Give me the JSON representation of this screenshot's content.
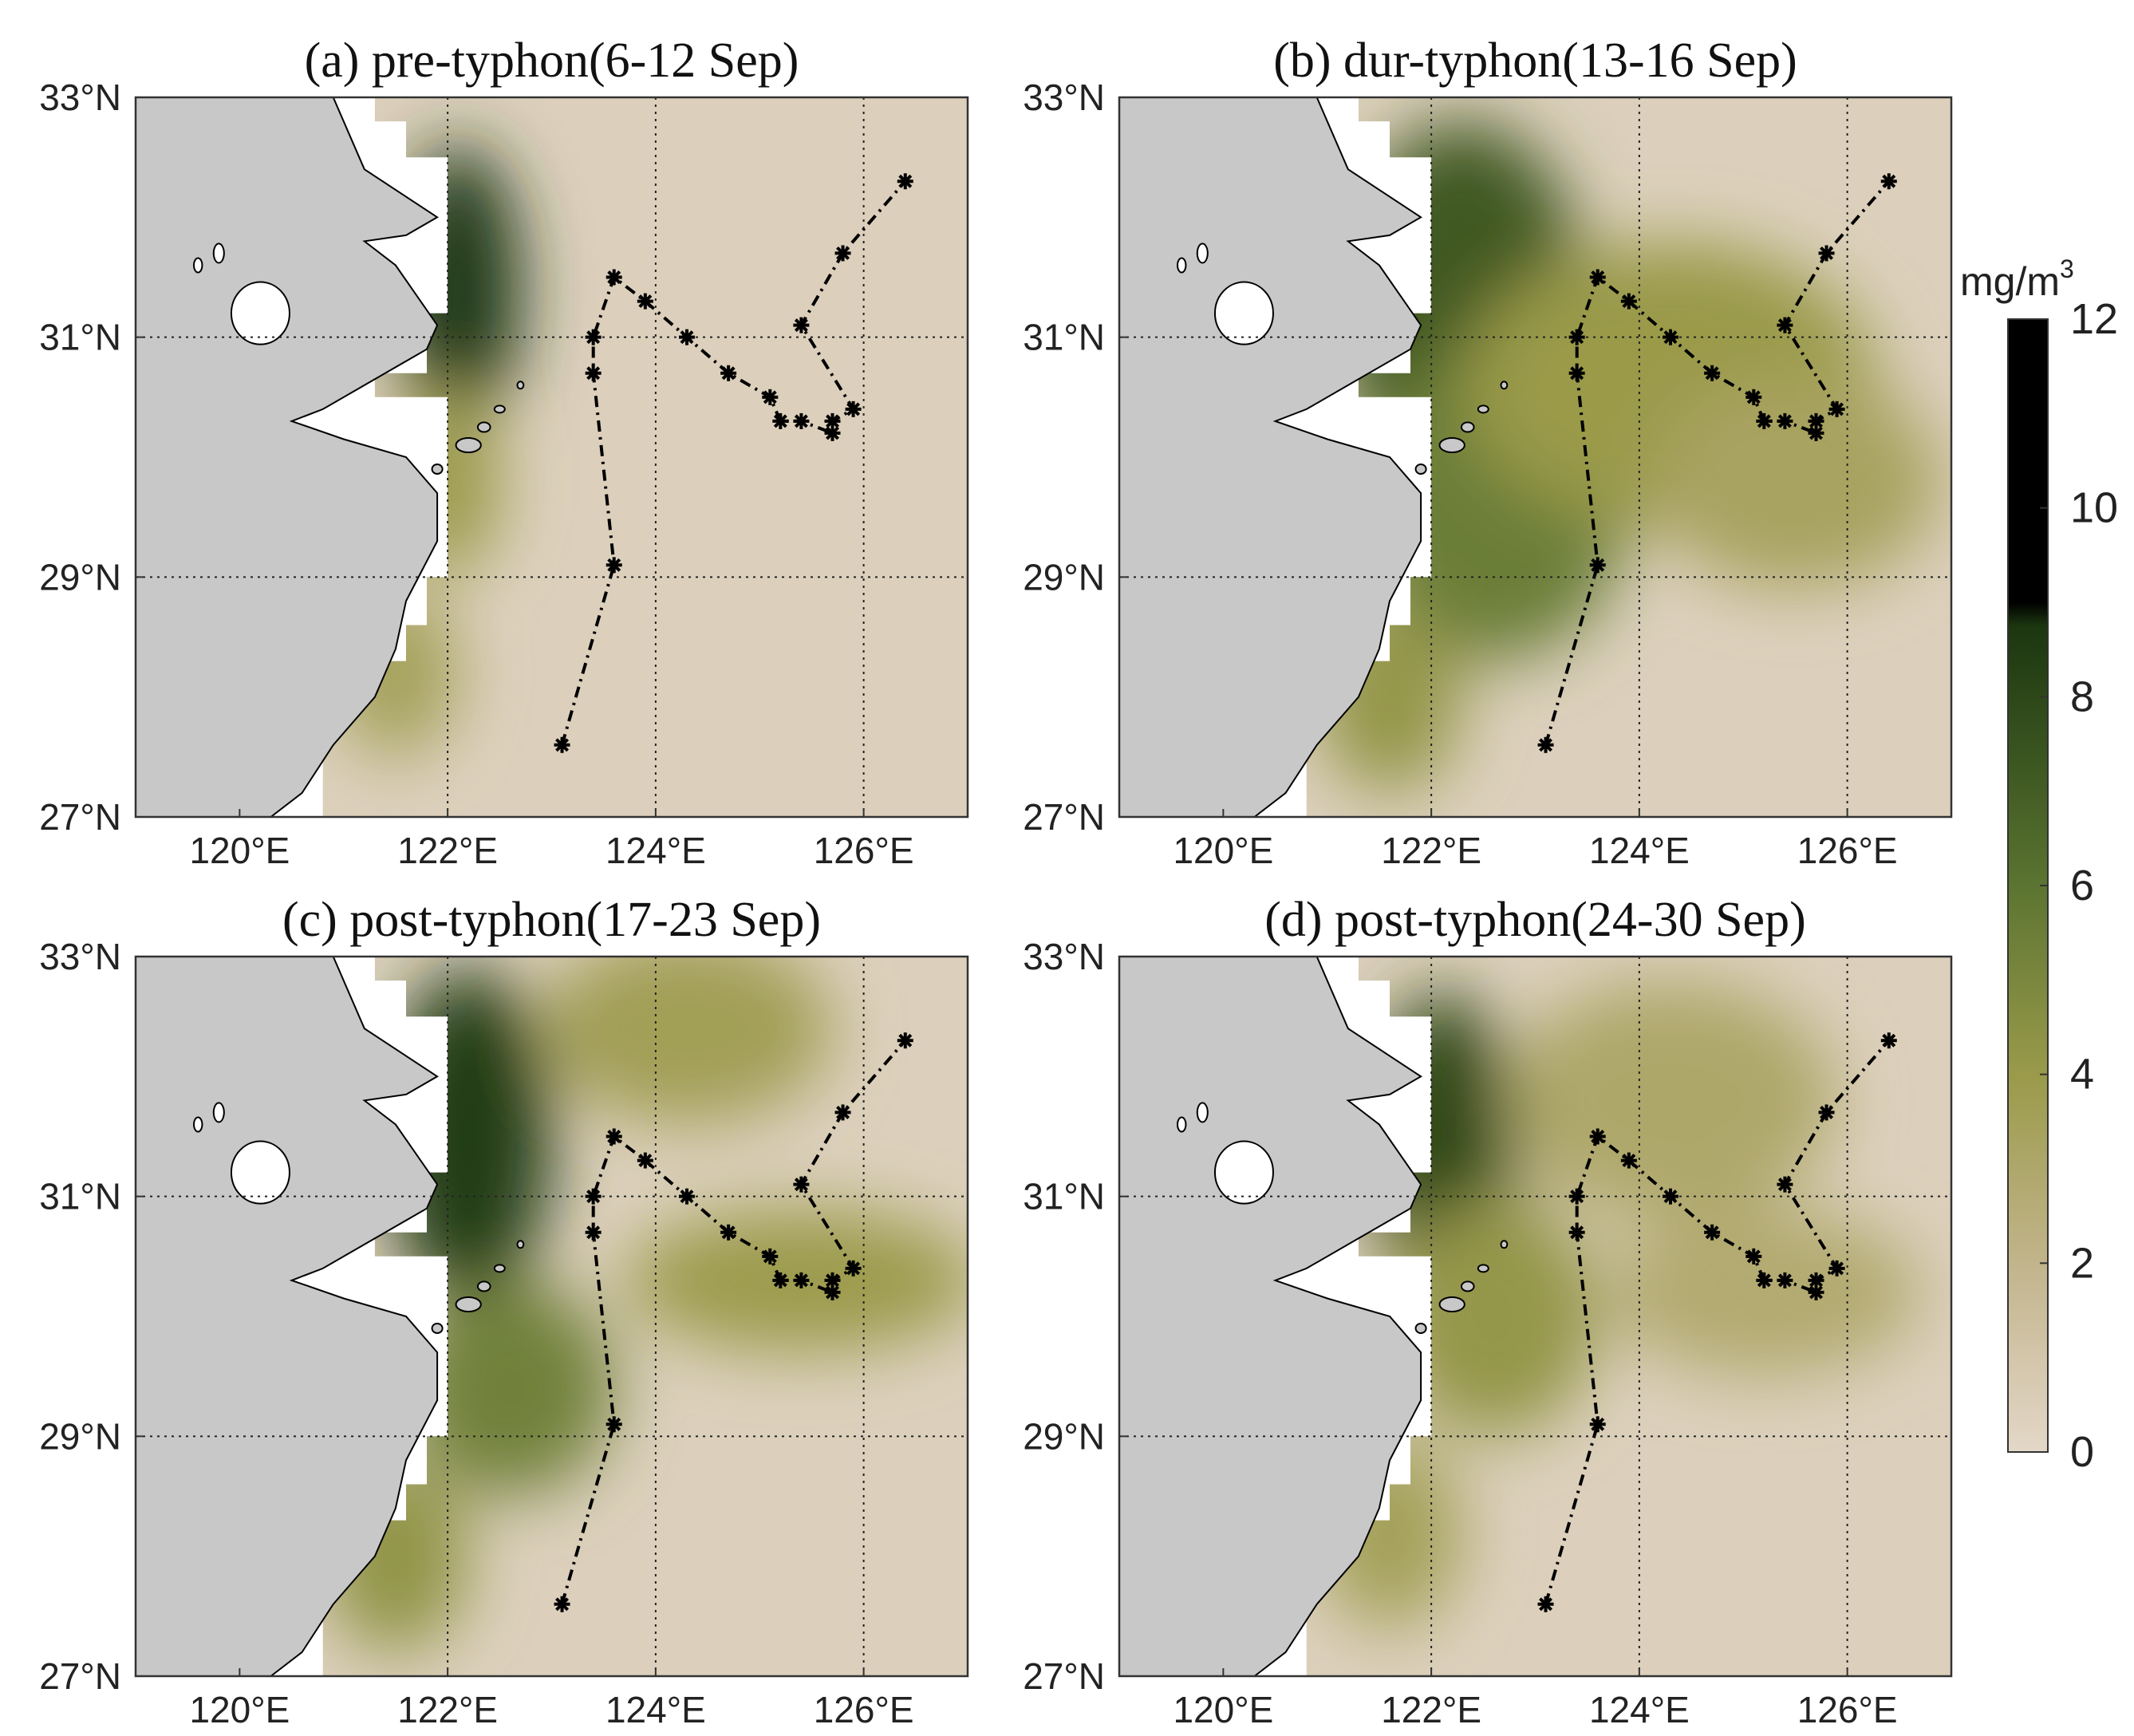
{
  "chart_data": {
    "type": "map",
    "variable_unit_main": "mg/m",
    "variable_unit_exp": "3",
    "colorbar": {
      "ticks": [
        0,
        2,
        4,
        6,
        8,
        10,
        12
      ],
      "tick_labels": [
        "0",
        "2",
        "4",
        "6",
        "8",
        "10",
        "12"
      ],
      "range": [
        0,
        12
      ],
      "saturation_value": 9,
      "colors": {
        "low": "#e3d7c8",
        "mid_low": "#c2b48b",
        "mid": "#9a9a4a",
        "mid_high": "#5b7431",
        "high": "#17310e",
        "saturated": "#000000"
      }
    },
    "lon_range": [
      119,
      127
    ],
    "lat_range": [
      27,
      33
    ],
    "lon_ticks": [
      {
        "value": 120,
        "label": "120°E"
      },
      {
        "value": 122,
        "label": "122°E"
      },
      {
        "value": 124,
        "label": "124°E"
      },
      {
        "value": 126,
        "label": "126°E"
      }
    ],
    "lat_ticks": [
      {
        "value": 27,
        "label": "27°N"
      },
      {
        "value": 29,
        "label": "29°N"
      },
      {
        "value": 31,
        "label": "31°N"
      },
      {
        "value": 33,
        "label": "33°N"
      }
    ],
    "grid_lons": [
      122,
      124,
      126
    ],
    "grid_lats": [
      29,
      31
    ],
    "track_points": [
      {
        "lon": 123.1,
        "lat": 27.6
      },
      {
        "lon": 123.6,
        "lat": 29.1
      },
      {
        "lon": 123.4,
        "lat": 30.7
      },
      {
        "lon": 123.4,
        "lat": 31.0
      },
      {
        "lon": 123.6,
        "lat": 31.5
      },
      {
        "lon": 123.9,
        "lat": 31.3
      },
      {
        "lon": 124.3,
        "lat": 31.0
      },
      {
        "lon": 124.7,
        "lat": 30.7
      },
      {
        "lon": 125.1,
        "lat": 30.5
      },
      {
        "lon": 125.2,
        "lat": 30.3
      },
      {
        "lon": 125.4,
        "lat": 30.3
      },
      {
        "lon": 125.7,
        "lat": 30.2
      },
      {
        "lon": 125.7,
        "lat": 30.3
      },
      {
        "lon": 125.9,
        "lat": 30.4
      },
      {
        "lon": 125.4,
        "lat": 31.1
      },
      {
        "lon": 125.8,
        "lat": 31.7
      },
      {
        "lon": 126.4,
        "lat": 32.3
      }
    ],
    "coastline": [
      {
        "lon": 119.0,
        "lat": 33.0
      },
      {
        "lon": 120.9,
        "lat": 33.0
      },
      {
        "lon": 121.2,
        "lat": 32.4
      },
      {
        "lon": 121.9,
        "lat": 32.0
      },
      {
        "lon": 121.6,
        "lat": 31.85
      },
      {
        "lon": 121.2,
        "lat": 31.8
      },
      {
        "lon": 121.5,
        "lat": 31.6
      },
      {
        "lon": 121.9,
        "lat": 31.1
      },
      {
        "lon": 121.8,
        "lat": 30.9
      },
      {
        "lon": 121.3,
        "lat": 30.65
      },
      {
        "lon": 120.8,
        "lat": 30.4
      },
      {
        "lon": 120.5,
        "lat": 30.3
      },
      {
        "lon": 121.0,
        "lat": 30.15
      },
      {
        "lon": 121.6,
        "lat": 30.0
      },
      {
        "lon": 121.9,
        "lat": 29.7
      },
      {
        "lon": 121.9,
        "lat": 29.3
      },
      {
        "lon": 121.6,
        "lat": 28.8
      },
      {
        "lon": 121.5,
        "lat": 28.4
      },
      {
        "lon": 121.3,
        "lat": 28.0
      },
      {
        "lon": 120.9,
        "lat": 27.6
      },
      {
        "lon": 120.6,
        "lat": 27.2
      },
      {
        "lon": 120.3,
        "lat": 27.0
      },
      {
        "lon": 119.0,
        "lat": 27.0
      }
    ],
    "no_data_mask": [
      {
        "lon": 120.9,
        "lat": 33.0
      },
      {
        "lon": 121.3,
        "lat": 33.0
      },
      {
        "lon": 121.3,
        "lat": 32.8
      },
      {
        "lon": 121.6,
        "lat": 32.8
      },
      {
        "lon": 121.6,
        "lat": 32.5
      },
      {
        "lon": 122.0,
        "lat": 32.5
      },
      {
        "lon": 122.0,
        "lat": 31.2
      },
      {
        "lon": 121.8,
        "lat": 31.2
      },
      {
        "lon": 121.8,
        "lat": 30.7
      },
      {
        "lon": 121.3,
        "lat": 30.7
      },
      {
        "lon": 121.3,
        "lat": 30.5
      },
      {
        "lon": 122.0,
        "lat": 30.5
      },
      {
        "lon": 122.0,
        "lat": 29.0
      },
      {
        "lon": 121.8,
        "lat": 29.0
      },
      {
        "lon": 121.8,
        "lat": 28.6
      },
      {
        "lon": 121.6,
        "lat": 28.6
      },
      {
        "lon": 121.6,
        "lat": 28.3
      },
      {
        "lon": 121.2,
        "lat": 28.3
      },
      {
        "lon": 121.2,
        "lat": 27.9
      },
      {
        "lon": 121.0,
        "lat": 27.9
      },
      {
        "lon": 121.0,
        "lat": 27.7
      },
      {
        "lon": 120.8,
        "lat": 27.7
      },
      {
        "lon": 120.8,
        "lat": 27.0
      },
      {
        "lon": 120.3,
        "lat": 27.0
      },
      {
        "lon": 120.6,
        "lat": 27.2
      },
      {
        "lon": 120.9,
        "lat": 27.6
      },
      {
        "lon": 121.3,
        "lat": 28.0
      },
      {
        "lon": 121.5,
        "lat": 28.4
      },
      {
        "lon": 121.6,
        "lat": 28.8
      },
      {
        "lon": 121.9,
        "lat": 29.3
      },
      {
        "lon": 121.9,
        "lat": 29.7
      },
      {
        "lon": 121.6,
        "lat": 30.0
      },
      {
        "lon": 121.0,
        "lat": 30.15
      },
      {
        "lon": 120.5,
        "lat": 30.3
      },
      {
        "lon": 120.8,
        "lat": 30.4
      },
      {
        "lon": 121.3,
        "lat": 30.65
      },
      {
        "lon": 121.8,
        "lat": 30.9
      },
      {
        "lon": 121.9,
        "lat": 31.1
      },
      {
        "lon": 121.5,
        "lat": 31.6
      },
      {
        "lon": 121.2,
        "lat": 31.8
      },
      {
        "lon": 121.6,
        "lat": 31.85
      },
      {
        "lon": 121.9,
        "lat": 32.0
      },
      {
        "lon": 121.2,
        "lat": 32.4
      }
    ],
    "lake": {
      "lon": 120.2,
      "lat": 31.2,
      "rlon": 0.28,
      "rlat": 0.26
    },
    "islands": [
      {
        "lon": 122.2,
        "lat": 30.1,
        "rlon": 0.12,
        "rlat": 0.06
      },
      {
        "lon": 122.35,
        "lat": 30.25,
        "rlon": 0.06,
        "rlat": 0.04
      },
      {
        "lon": 122.5,
        "lat": 30.4,
        "rlon": 0.05,
        "rlat": 0.03
      },
      {
        "lon": 122.7,
        "lat": 30.6,
        "rlon": 0.03,
        "rlat": 0.03
      },
      {
        "lon": 121.9,
        "lat": 29.9,
        "rlon": 0.05,
        "rlat": 0.04
      },
      {
        "lon": 119.8,
        "lat": 31.7,
        "rlon": 0.05,
        "rlat": 0.08
      },
      {
        "lon": 119.6,
        "lat": 31.6,
        "rlon": 0.04,
        "rlat": 0.06
      }
    ],
    "panels": [
      {
        "title": "(a) pre-typhon(6-12 Sep)",
        "blobs": [
          {
            "lon": 122.1,
            "lat": 31.4,
            "rlon": 0.6,
            "rlat": 1.2,
            "value": 8.6
          },
          {
            "lon": 122.0,
            "lat": 29.8,
            "rlon": 0.5,
            "rlat": 0.8,
            "value": 4.0
          },
          {
            "lon": 121.5,
            "lat": 28.2,
            "rlon": 0.6,
            "rlat": 0.7,
            "value": 3.5
          }
        ]
      },
      {
        "title": "(b) dur-typhon(13-16 Sep)",
        "blobs": [
          {
            "lon": 122.3,
            "lat": 31.2,
            "rlon": 1.2,
            "rlat": 1.6,
            "value": 7.2
          },
          {
            "lon": 122.6,
            "lat": 29.6,
            "rlon": 1.3,
            "rlat": 1.3,
            "value": 5.5
          },
          {
            "lon": 124.3,
            "lat": 30.6,
            "rlon": 2.0,
            "rlat": 1.2,
            "value": 4.0
          },
          {
            "lon": 125.5,
            "lat": 29.8,
            "rlon": 1.4,
            "rlat": 0.9,
            "value": 3.3
          },
          {
            "lon": 121.6,
            "lat": 28.0,
            "rlon": 0.7,
            "rlat": 0.8,
            "value": 4.2
          }
        ]
      },
      {
        "title": "(c) post-typhon(17-23 Sep)",
        "blobs": [
          {
            "lon": 122.2,
            "lat": 31.5,
            "rlon": 0.8,
            "rlat": 1.4,
            "value": 8.4
          },
          {
            "lon": 122.6,
            "lat": 29.4,
            "rlon": 1.0,
            "rlat": 0.9,
            "value": 5.3
          },
          {
            "lon": 124.3,
            "lat": 32.4,
            "rlon": 1.4,
            "rlat": 0.8,
            "value": 3.6
          },
          {
            "lon": 125.4,
            "lat": 30.3,
            "rlon": 1.7,
            "rlat": 0.6,
            "value": 3.9
          },
          {
            "lon": 121.5,
            "lat": 28.0,
            "rlon": 0.7,
            "rlat": 0.8,
            "value": 4.3
          }
        ]
      },
      {
        "title": "(d) post-typhon(24-30 Sep)",
        "blobs": [
          {
            "lon": 122.1,
            "lat": 31.4,
            "rlon": 0.7,
            "rlat": 1.3,
            "value": 8.0
          },
          {
            "lon": 122.6,
            "lat": 30.0,
            "rlon": 1.0,
            "rlat": 1.0,
            "value": 4.2
          },
          {
            "lon": 124.3,
            "lat": 31.8,
            "rlon": 1.6,
            "rlat": 1.0,
            "value": 3.0
          },
          {
            "lon": 125.2,
            "lat": 30.2,
            "rlon": 1.5,
            "rlat": 0.7,
            "value": 2.8
          },
          {
            "lon": 121.6,
            "lat": 28.2,
            "rlon": 0.7,
            "rlat": 0.8,
            "value": 3.5
          }
        ]
      }
    ]
  }
}
